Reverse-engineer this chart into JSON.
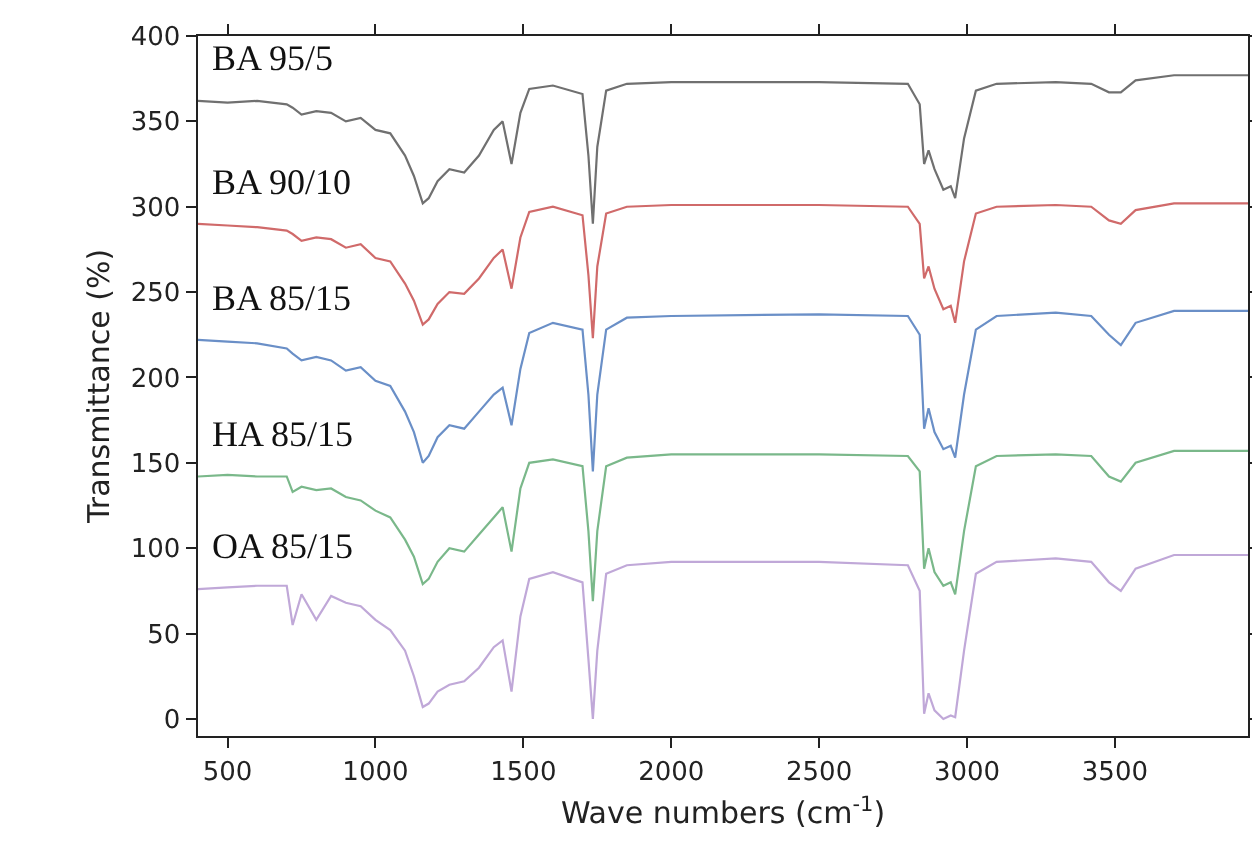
{
  "chart_data": {
    "type": "line",
    "xlabel": "Wave numbers (cm$^{-1}$)",
    "ylabel": "Transmittance (%)",
    "x": [
      400,
      500,
      600,
      700,
      720,
      750,
      800,
      850,
      900,
      950,
      1000,
      1050,
      1100,
      1130,
      1160,
      1180,
      1210,
      1250,
      1300,
      1350,
      1400,
      1430,
      1460,
      1490,
      1520,
      1600,
      1700,
      1720,
      1735,
      1750,
      1780,
      1850,
      2000,
      2500,
      2800,
      2840,
      2855,
      2870,
      2890,
      2920,
      2945,
      2960,
      2990,
      3030,
      3100,
      3300,
      3420,
      3480,
      3520,
      3570,
      3700,
      3950
    ],
    "series": [
      {
        "name": "BA 95/5",
        "color": "#707070",
        "values": [
          362,
          361,
          362,
          360,
          358,
          354,
          356,
          355,
          350,
          352,
          345,
          343,
          330,
          318,
          302,
          305,
          315,
          322,
          320,
          330,
          345,
          350,
          325,
          355,
          369,
          371,
          366,
          330,
          290,
          335,
          368,
          372,
          373,
          373,
          372,
          360,
          325,
          333,
          322,
          310,
          312,
          305,
          340,
          368,
          372,
          373,
          372,
          367,
          367,
          374,
          377,
          377
        ]
      },
      {
        "name": "BA 90/10",
        "color": "#d06a6a",
        "values": [
          290,
          289,
          288,
          286,
          284,
          280,
          282,
          281,
          276,
          278,
          270,
          268,
          255,
          245,
          231,
          234,
          243,
          250,
          249,
          258,
          270,
          275,
          252,
          282,
          297,
          300,
          295,
          260,
          223,
          265,
          296,
          300,
          301,
          301,
          300,
          290,
          258,
          265,
          252,
          240,
          242,
          232,
          268,
          296,
          300,
          301,
          300,
          292,
          290,
          298,
          302,
          302
        ]
      },
      {
        "name": "BA 85/15",
        "color": "#6a8fc7",
        "values": [
          222,
          221,
          220,
          217,
          214,
          210,
          212,
          210,
          204,
          206,
          198,
          195,
          180,
          168,
          150,
          154,
          165,
          172,
          170,
          180,
          190,
          194,
          172,
          205,
          226,
          232,
          228,
          190,
          145,
          190,
          228,
          235,
          236,
          237,
          236,
          225,
          170,
          182,
          168,
          158,
          160,
          153,
          190,
          228,
          236,
          238,
          236,
          225,
          219,
          232,
          239,
          239
        ]
      },
      {
        "name": "HA 85/15",
        "color": "#7ab88a",
        "values": [
          142,
          143,
          142,
          142,
          133,
          136,
          134,
          135,
          130,
          128,
          122,
          118,
          105,
          95,
          79,
          82,
          92,
          100,
          98,
          108,
          118,
          124,
          98,
          135,
          150,
          152,
          148,
          110,
          69,
          110,
          148,
          153,
          155,
          155,
          154,
          145,
          88,
          100,
          86,
          78,
          80,
          73,
          110,
          148,
          154,
          155,
          154,
          142,
          139,
          150,
          157,
          157
        ]
      },
      {
        "name": "OA 85/15",
        "color": "#c0a8d8",
        "values": [
          76,
          77,
          78,
          78,
          55,
          73,
          58,
          72,
          68,
          66,
          58,
          52,
          40,
          25,
          7,
          9,
          16,
          20,
          22,
          30,
          42,
          46,
          16,
          60,
          82,
          86,
          80,
          35,
          0,
          40,
          85,
          90,
          92,
          92,
          90,
          75,
          3,
          15,
          5,
          0,
          2,
          1,
          40,
          85,
          92,
          94,
          92,
          80,
          75,
          88,
          96,
          96
        ]
      }
    ],
    "xlim": [
      400,
      3950
    ],
    "xticks": [
      500,
      1000,
      1500,
      2000,
      2500,
      3000,
      3500
    ],
    "ylim": [
      -10,
      400
    ],
    "yticks": [
      0,
      50,
      100,
      150,
      200,
      250,
      300,
      350,
      400
    ],
    "grid": false,
    "legend": false,
    "marker": "none",
    "line_style": "solid"
  }
}
